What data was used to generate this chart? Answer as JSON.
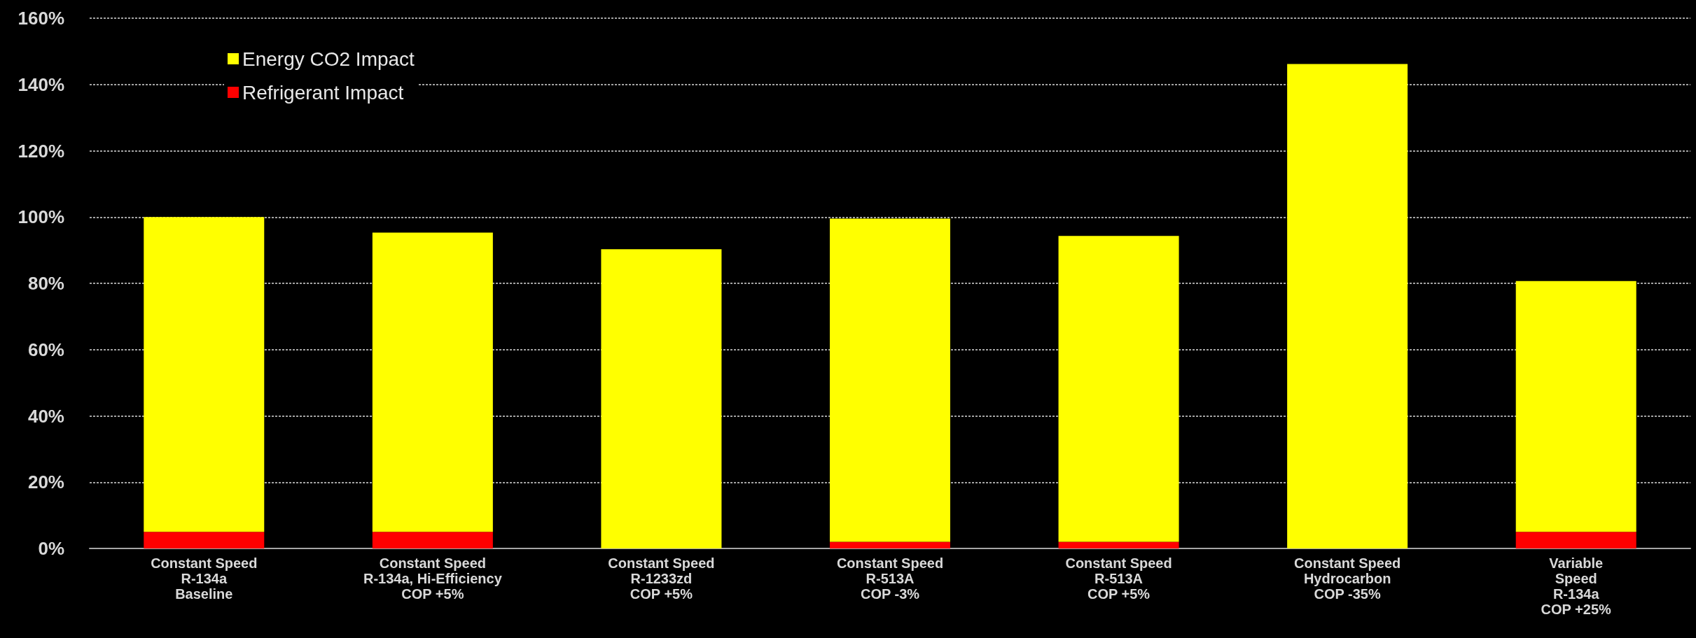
{
  "chart_data": {
    "type": "bar",
    "stacked": true,
    "categories": [
      "Constant Speed\nR-134a\nBaseline",
      "Constant Speed\nR-134a, Hi-Efficiency\nCOP +5%",
      "Constant Speed\nR-1233zd\nCOP +5%",
      "Constant Speed\nR-513A\nCOP -3%",
      "Constant Speed\nR-513A\nCOP +5%",
      "Constant Speed\nHydrocarbon\nCOP -35%",
      "Variable\nSpeed\nR-134a\nCOP +25%"
    ],
    "series": [
      {
        "name": "Refrigerant Impact",
        "color": "#ff0000",
        "values": [
          5,
          5,
          0,
          2,
          2,
          0,
          5
        ]
      },
      {
        "name": "Energy CO2 Impact",
        "color": "#ffff00",
        "values": [
          95,
          90.3,
          90.3,
          97.5,
          92.3,
          146.2,
          75.7
        ]
      }
    ],
    "ylim": [
      0,
      160
    ],
    "yticks": [
      {
        "value": 0,
        "label": "0%"
      },
      {
        "value": 20,
        "label": "20%"
      },
      {
        "value": 40,
        "label": "40%"
      },
      {
        "value": 60,
        "label": "60%"
      },
      {
        "value": 80,
        "label": "80%"
      },
      {
        "value": 100,
        "label": "100%"
      },
      {
        "value": 120,
        "label": "120%"
      },
      {
        "value": 140,
        "label": "140%"
      },
      {
        "value": 160,
        "label": "160%"
      }
    ],
    "grid": "y",
    "legend": "top left"
  }
}
